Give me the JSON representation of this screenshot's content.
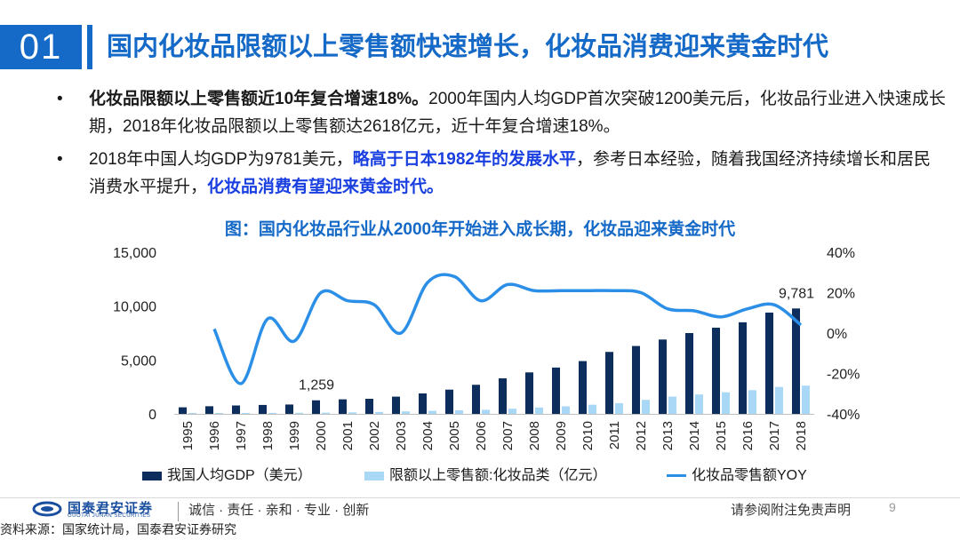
{
  "header": {
    "slide_number": "01",
    "title": "国内化妆品限额以上零售额快速增长，化妆品消费迎来黄金时代"
  },
  "bullets": [
    {
      "marker": "•",
      "strong": "化妆品限额以上零售额近10年复合增速18%。",
      "text": "2000年国内人均GDP首次突破1200美元后，化妆品行业进入快速成长期，2018年化妆品限额以上零售额达2618亿元，近十年复合增速18%。"
    },
    {
      "marker": "•",
      "part1": "2018年中国人均GDP为9781美元，",
      "highlight1": "略高于日本1982年的发展水平",
      "part2": "，参考日本经验，随着我国经济持续增长和居民消费水平提升，",
      "highlight2": "化妆品消费有望迎来黄金时代。"
    }
  ],
  "chart_data": {
    "type": "bar+line",
    "title": "图：国内化妆品行业从2000年开始进入成长期，化妆品迎来黄金时代",
    "categories": [
      "1995",
      "1996",
      "1997",
      "1998",
      "1999",
      "2000",
      "2001",
      "2002",
      "2003",
      "2004",
      "2005",
      "2006",
      "2007",
      "2008",
      "2009",
      "2010",
      "2011",
      "2012",
      "2013",
      "2014",
      "2015",
      "2016",
      "2017",
      "2018"
    ],
    "y_left": {
      "range": [
        0,
        15000
      ],
      "ticks": [
        "0",
        "5,000",
        "10,000",
        "15,000"
      ]
    },
    "y_right": {
      "range": [
        -40,
        40
      ],
      "ticks": [
        "-40%",
        "-20%",
        "0%",
        "20%",
        "40%"
      ]
    },
    "series": [
      {
        "name": "我国人均GDP（美元）",
        "type": "bar",
        "axis": "left",
        "color": "#0d2d5c",
        "values": [
          610,
          710,
          780,
          830,
          870,
          1259,
          1350,
          1400,
          1600,
          1900,
          2250,
          2700,
          3300,
          3850,
          4300,
          4900,
          5750,
          6300,
          6900,
          7500,
          8000,
          8500,
          9400,
          9781
        ]
      },
      {
        "name": "限额以上零售额:化妆品类（亿元）",
        "type": "bar",
        "axis": "left",
        "color": "#a8d8f5",
        "values": [
          40,
          60,
          75,
          90,
          100,
          110,
          140,
          180,
          230,
          280,
          330,
          380,
          480,
          590,
          700,
          850,
          1000,
          1300,
          1600,
          1800,
          2000,
          2200,
          2500,
          2618
        ]
      },
      {
        "name": "化妆品零售额YOY",
        "type": "line",
        "axis": "right",
        "color": "#2b8fe8",
        "values": [
          null,
          2,
          -25,
          7,
          -4,
          20,
          16,
          14,
          0,
          25,
          28,
          16,
          24,
          21,
          21,
          21,
          21,
          20,
          12,
          11,
          8,
          12,
          14,
          4
        ]
      }
    ],
    "data_labels": [
      {
        "category": "2000",
        "text": "1,259"
      },
      {
        "category": "2018",
        "text": "9,781"
      }
    ]
  },
  "footer": {
    "logo_cn": "国泰君安证券",
    "logo_en": "GUOTAI JUNAN SECURITIES",
    "slogan": "诚信 · 责任 · 亲和 · 专业 · 创新",
    "disclaimer": "请参阅附注免责声明",
    "page_number": "9",
    "source": "资料来源：国家统计局，国泰君安证券研究"
  },
  "colors": {
    "brand_blue": "#1569c7",
    "highlight_blue": "#1a3fe0"
  }
}
